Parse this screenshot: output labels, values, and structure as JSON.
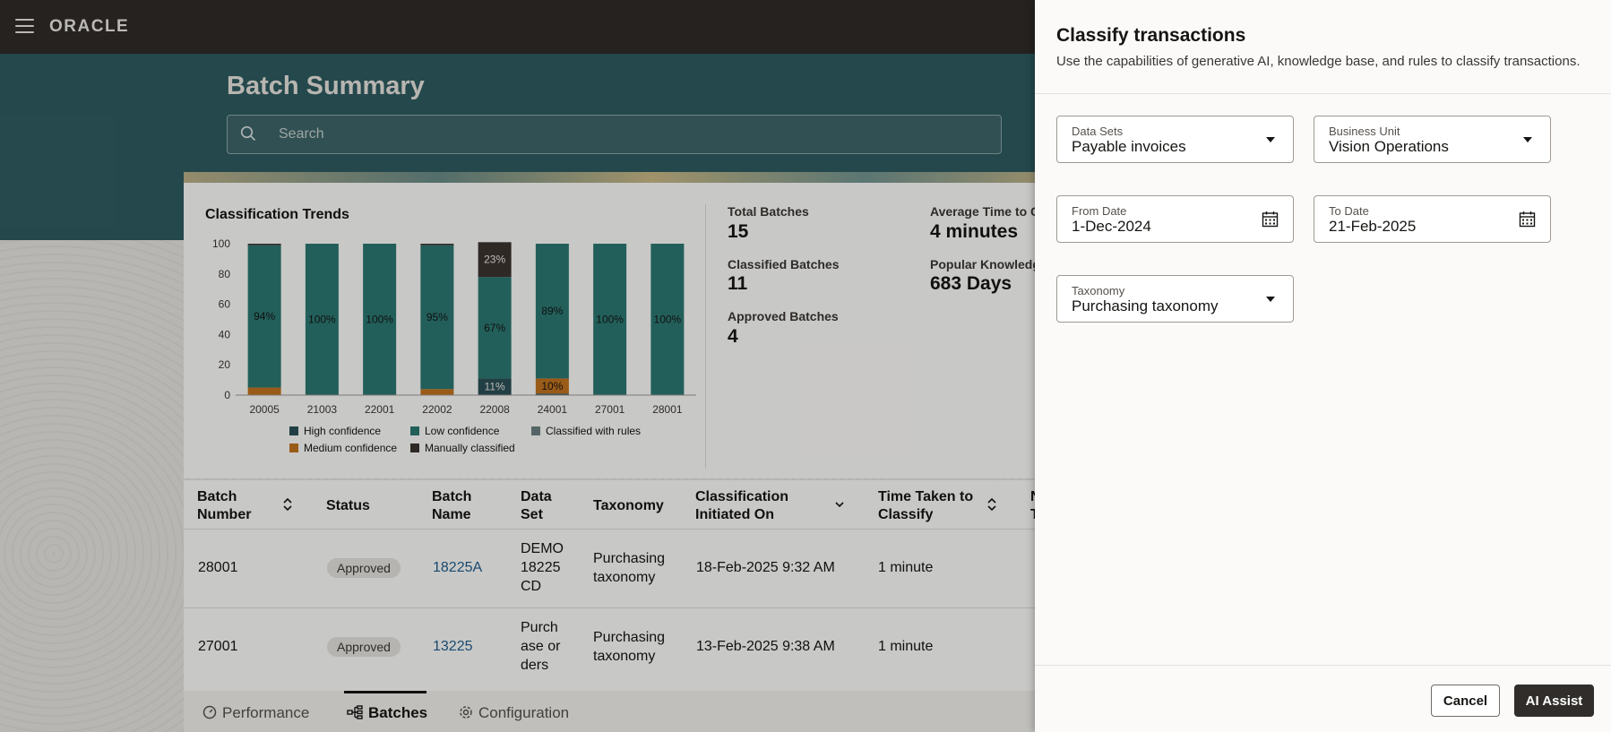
{
  "app": {
    "logo": "ORACLE"
  },
  "page": {
    "title": "Batch Summary",
    "search_placeholder": "Search"
  },
  "chart_data": {
    "type": "bar",
    "title": "Classification Trends",
    "categories": [
      "20005",
      "21003",
      "22001",
      "22002",
      "22008",
      "24001",
      "27001",
      "28001"
    ],
    "ylim": [
      0,
      100
    ],
    "yticks": [
      "0",
      "20",
      "40",
      "60",
      "80",
      "100"
    ],
    "series": [
      {
        "name": "High confidence",
        "color": "#2a4f55",
        "values": [
          0,
          0,
          0,
          0,
          11,
          1,
          0,
          0
        ]
      },
      {
        "name": "Medium confidence",
        "color": "#c0721d",
        "values": [
          5,
          0,
          0,
          4,
          0,
          10,
          0,
          0
        ]
      },
      {
        "name": "Low confidence",
        "color": "#2b7771",
        "values": [
          94,
          100,
          100,
          95,
          67,
          89,
          100,
          100
        ]
      },
      {
        "name": "Classified with rules",
        "color": "#6b7f80",
        "values": [
          0,
          0,
          0,
          0,
          0,
          0,
          0,
          0
        ]
      },
      {
        "name": "Manually classified",
        "color": "#3b3430",
        "values": [
          1,
          0,
          0,
          1,
          23,
          0,
          0,
          0
        ]
      }
    ],
    "data_labels": [
      {
        "category": "20005",
        "series": "Low confidence",
        "text": "94%"
      },
      {
        "category": "21003",
        "series": "Low confidence",
        "text": "100%"
      },
      {
        "category": "22001",
        "series": "Low confidence",
        "text": "100%"
      },
      {
        "category": "22002",
        "series": "Low confidence",
        "text": "95%"
      },
      {
        "category": "22008",
        "series": "Manually classified",
        "text": "23%"
      },
      {
        "category": "22008",
        "series": "Low confidence",
        "text": "67%"
      },
      {
        "category": "22008",
        "series": "High confidence",
        "text": "11%"
      },
      {
        "category": "24001",
        "series": "Low confidence",
        "text": "89%"
      },
      {
        "category": "24001",
        "series": "Medium confidence",
        "text": "10%"
      },
      {
        "category": "27001",
        "series": "Low confidence",
        "text": "100%"
      },
      {
        "category": "28001",
        "series": "Low confidence",
        "text": "100%"
      }
    ],
    "legend": [
      "High confidence",
      "Low confidence",
      "Classified with rules",
      "Medium confidence",
      "Manually classified"
    ]
  },
  "stats": {
    "total_label": "Total Batches",
    "total_value": "15",
    "classified_label": "Classified Batches",
    "classified_value": "11",
    "approved_label": "Approved Batches",
    "approved_value": "4",
    "avg_label": "Average Time to C",
    "avg_value": "4 minutes",
    "popular_label": "Popular Knowledg",
    "popular_value": "683 Days"
  },
  "table": {
    "headers": {
      "batch_number": [
        "Batch",
        "Number"
      ],
      "status": "Status",
      "batch_name": [
        "Batch",
        "Name"
      ],
      "data_set": [
        "Data",
        "Set"
      ],
      "taxonomy": "Taxonomy",
      "initiated": [
        "Classification",
        "Initiated On"
      ],
      "time_taken": [
        "Time Taken to",
        "Classify"
      ],
      "next_partial": [
        "N",
        "T"
      ]
    },
    "rows": [
      {
        "batch_number": "28001",
        "status": "Approved",
        "batch_name": "18225A",
        "data_set": [
          "DEMO",
          "18225",
          "CD"
        ],
        "taxonomy": [
          "Purchasing",
          "taxonomy"
        ],
        "initiated": "18-Feb-2025 9:32 AM",
        "time_taken": "1 minute"
      },
      {
        "batch_number": "27001",
        "status": "Approved",
        "batch_name": "13225",
        "data_set": [
          "Purch",
          "ase or",
          "ders"
        ],
        "taxonomy": [
          "Purchasing",
          "taxonomy"
        ],
        "initiated": "13-Feb-2025 9:38 AM",
        "time_taken": "1 minute"
      }
    ]
  },
  "bottom_nav": {
    "performance": "Performance",
    "batches": "Batches",
    "configuration": "Configuration"
  },
  "drawer": {
    "title": "Classify transactions",
    "subtitle": "Use the capabilities of generative AI, knowledge base, and rules to classify transactions.",
    "data_sets": {
      "label": "Data Sets",
      "value": "Payable invoices"
    },
    "business_unit": {
      "label": "Business Unit",
      "value": "Vision Operations"
    },
    "from_date": {
      "label": "From Date",
      "value": "1-Dec-2024"
    },
    "to_date": {
      "label": "To Date",
      "value": "21-Feb-2025"
    },
    "taxonomy": {
      "label": "Taxonomy",
      "value": "Purchasing taxonomy"
    },
    "cancel_label": "Cancel",
    "ai_assist_label": "AI Assist"
  }
}
